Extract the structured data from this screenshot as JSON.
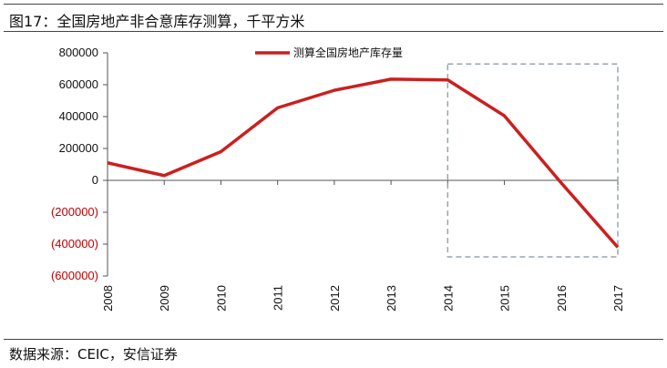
{
  "header": {
    "title": "图17：全国房地产非合意库存测算，千平方米"
  },
  "footer": {
    "source": "数据来源：CEIC，安信证券"
  },
  "colors": {
    "series": "#cc1f1f",
    "negative_label": "#c00000",
    "box": "#9aa5ad",
    "axis": "#555555"
  },
  "chart_data": {
    "type": "line",
    "title": "全国房地产非合意库存测算，千平方米",
    "x": [
      "2008",
      "2009",
      "2010",
      "2011",
      "2012",
      "2013",
      "2014",
      "2015",
      "2016",
      "2017"
    ],
    "series": [
      {
        "name": "测算全国房地产库存量",
        "values": [
          110000,
          30000,
          180000,
          455000,
          565000,
          635000,
          630000,
          405000,
          -15000,
          -420000
        ]
      }
    ],
    "yticks": [
      800000,
      600000,
      400000,
      200000,
      0,
      -200000,
      -400000,
      -600000
    ],
    "ytick_labels": [
      "800000",
      "600000",
      "400000",
      "200000",
      "0",
      "(200000)",
      "(400000)",
      "(600000)"
    ],
    "ylim": [
      -600000,
      800000
    ],
    "legend_position": "top-center",
    "highlight_box": {
      "x_from": "2014",
      "x_to": "2017",
      "y_from": -480000,
      "y_to": 730000
    },
    "grid": false
  }
}
